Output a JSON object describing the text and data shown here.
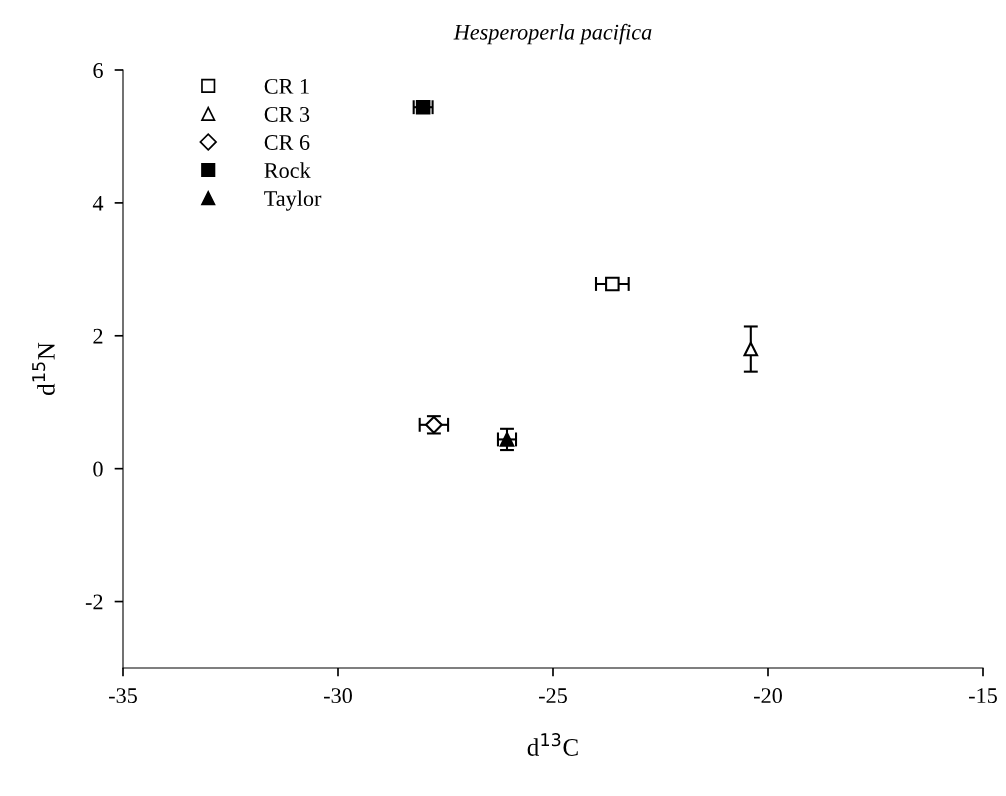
{
  "chart_data": {
    "type": "scatter",
    "title": "Hesperoperla pacifica",
    "xlabel": "d$^{13}$C",
    "ylabel": "d$^{15}$N",
    "xlim": [
      -35,
      -15
    ],
    "xticks": [
      -35,
      -30,
      -25,
      -20,
      -15
    ],
    "ylim": [
      -3,
      6
    ],
    "yticks": [
      -2,
      0,
      2,
      4,
      6
    ],
    "grid": false,
    "legend": "top left",
    "series": [
      {
        "name": "CR 1",
        "color": "#ffffff",
        "marker": "square",
        "x": [
          -23.62
        ],
        "values": [
          2.78
        ],
        "xerrors": [
          0.38
        ]
      },
      {
        "name": "CR 3",
        "color": "#ffffff",
        "marker": "triangle",
        "x": [
          -20.4
        ],
        "values": [
          1.8
        ],
        "errors": [
          0.34
        ]
      },
      {
        "name": "CR 6",
        "color": "#ffffff",
        "marker": "diamond",
        "x": [
          -27.77
        ],
        "values": [
          0.66
        ],
        "errors": [
          0.13
        ],
        "xerrors": [
          0.33
        ]
      },
      {
        "name": "Rock",
        "color": "#000000",
        "marker": "square",
        "x": [
          -28.02
        ],
        "values": [
          5.44
        ],
        "xerrors": [
          0.22
        ]
      },
      {
        "name": "Taylor",
        "color": "#000000",
        "marker": "triangle",
        "x": [
          -26.07
        ],
        "values": [
          0.44
        ],
        "errors": [
          0.16
        ],
        "xerrors": [
          0.21
        ]
      }
    ]
  }
}
